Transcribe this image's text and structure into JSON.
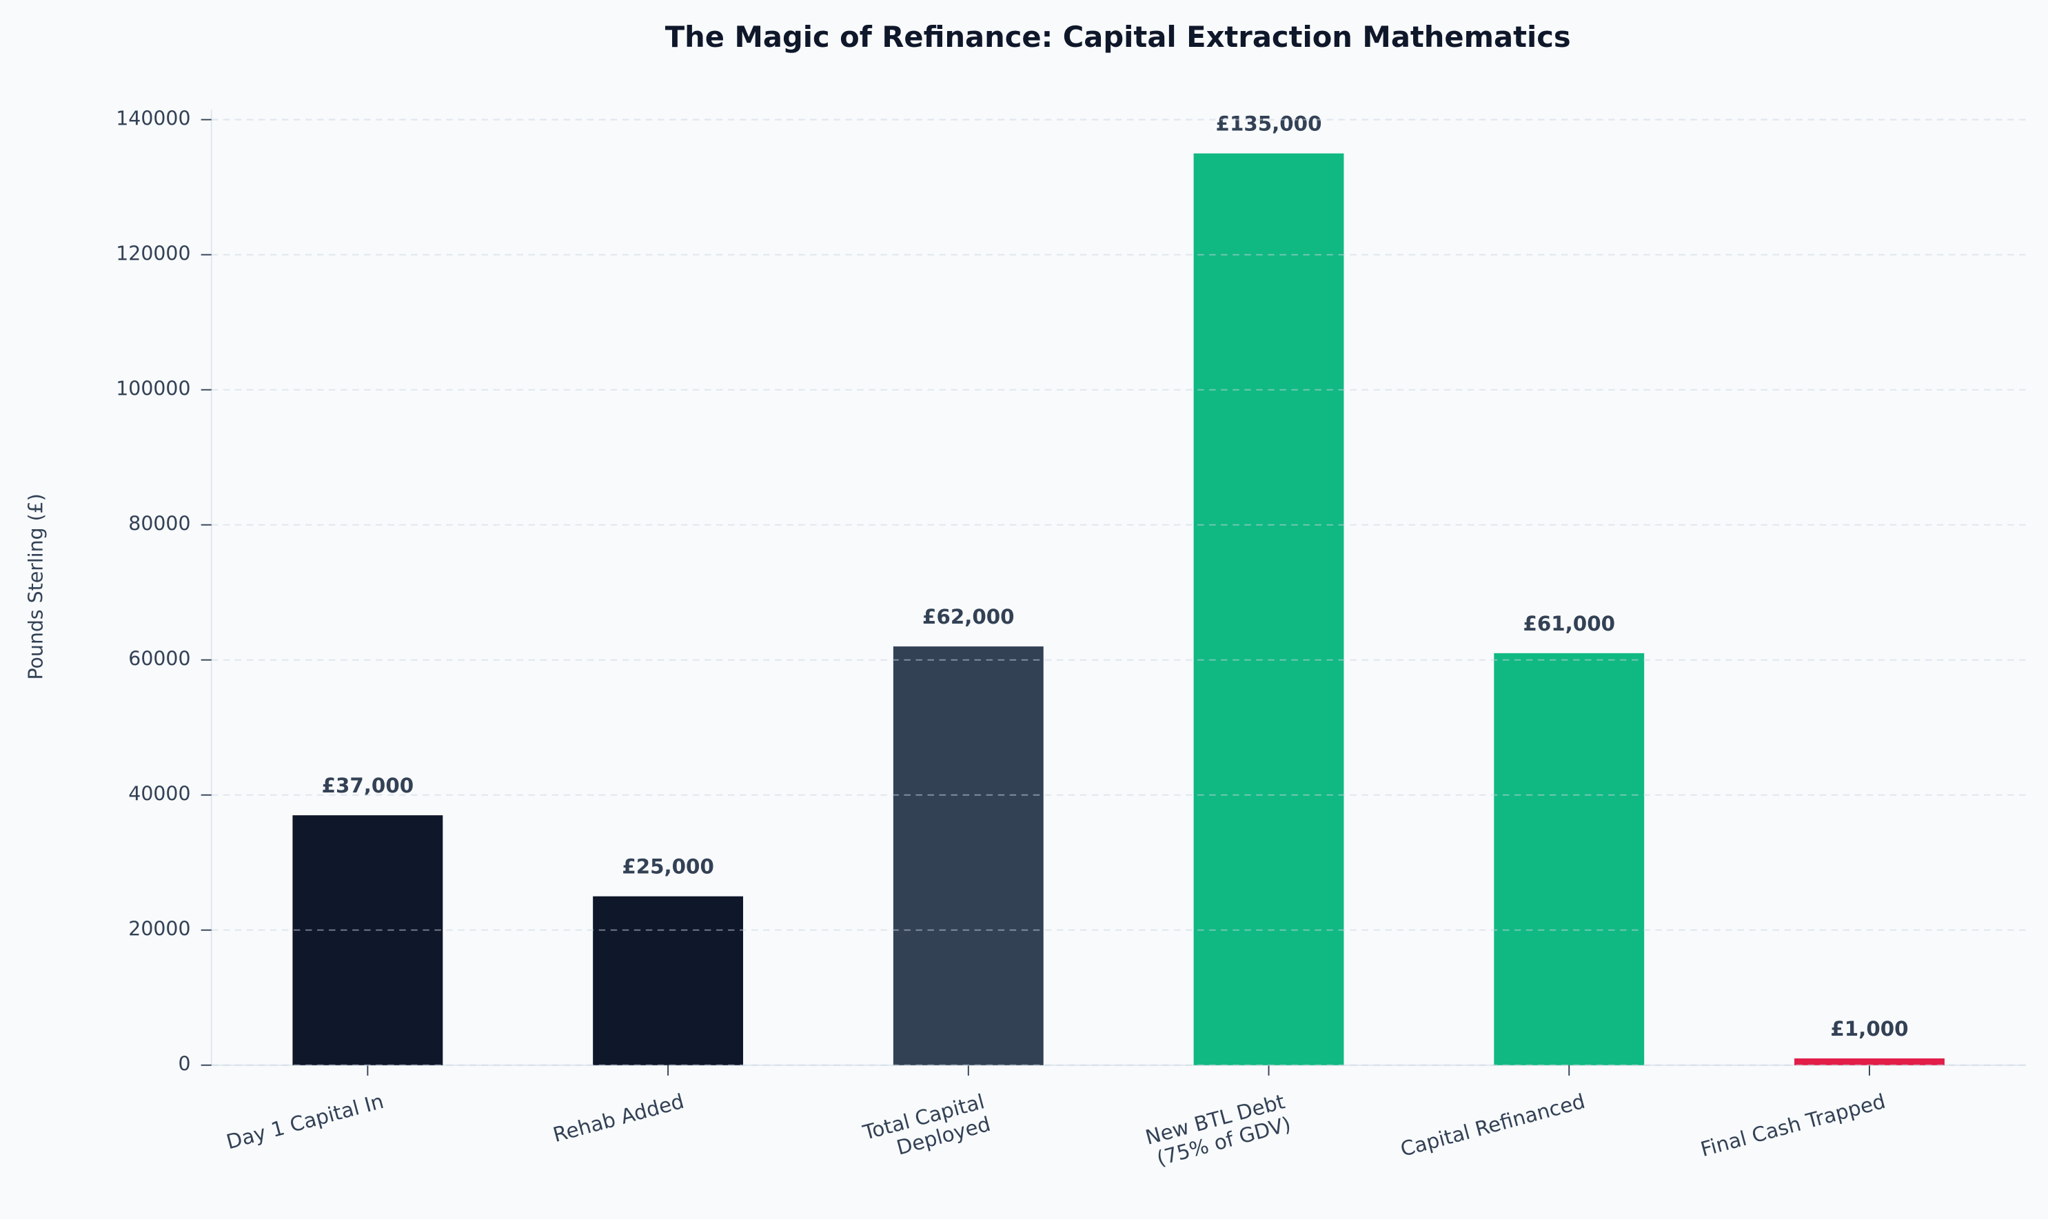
{
  "chart_data": {
    "type": "bar",
    "title": "The Magic of Refinance: Capital Extraction Mathematics",
    "y_label": "Pounds Sterling (£)",
    "categories": [
      "Day 1 Capital In",
      "Rehab Added",
      "Total Capital\nDeployed",
      "New BTL Debt\n(75% of GDV)",
      "Capital Refinanced",
      "Final Cash Trapped"
    ],
    "values": [
      37000,
      25000,
      62000,
      135000,
      61000,
      1000
    ],
    "value_labels": [
      "£37,000",
      "£25,000",
      "£62,000",
      "£135,000",
      "£61,000",
      "£1,000"
    ],
    "colors": [
      "#0f172a",
      "#0f172a",
      "#334155",
      "#10b981",
      "#10b981",
      "#e11d48"
    ],
    "ylim": [
      0,
      141500
    ],
    "yticks": [
      0,
      20000,
      40000,
      60000,
      80000,
      100000,
      120000,
      140000
    ],
    "grid": true
  }
}
